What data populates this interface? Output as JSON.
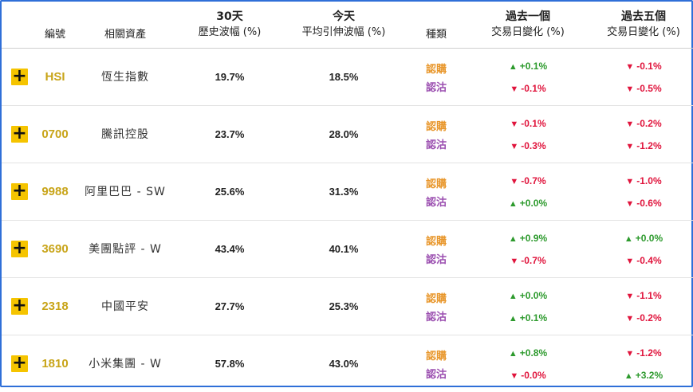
{
  "header": {
    "code": "編號",
    "asset": "相關資產",
    "hist_vol": [
      "30天",
      "歷史波幅 (%)"
    ],
    "today_vol": [
      "今天",
      "平均引伸波幅 (%)"
    ],
    "type": "種類",
    "chg1": [
      "過去一個",
      "交易日變化 (%)"
    ],
    "chg5": [
      "過去五個",
      "交易日變化 (%)"
    ]
  },
  "rows": [
    {
      "code": "HSI",
      "asset": "恆生指數",
      "hist": "19.7%",
      "today": "18.5%",
      "call": "認購",
      "put": "認沽",
      "c1": [
        {
          "dir": "up",
          "v": "+0.1%"
        },
        {
          "dir": "down",
          "v": "-0.1%"
        }
      ],
      "c5": [
        {
          "dir": "down",
          "v": "-0.1%"
        },
        {
          "dir": "down",
          "v": "-0.5%"
        }
      ]
    },
    {
      "code": "0700",
      "asset": "騰訊控股",
      "hist": "23.7%",
      "today": "28.0%",
      "call": "認購",
      "put": "認沽",
      "c1": [
        {
          "dir": "down",
          "v": "-0.1%"
        },
        {
          "dir": "down",
          "v": "-0.3%"
        }
      ],
      "c5": [
        {
          "dir": "down",
          "v": "-0.2%"
        },
        {
          "dir": "down",
          "v": "-1.2%"
        }
      ]
    },
    {
      "code": "9988",
      "asset": "阿里巴巴 - SW",
      "hist": "25.6%",
      "today": "31.3%",
      "call": "認購",
      "put": "認沽",
      "c1": [
        {
          "dir": "down",
          "v": "-0.7%"
        },
        {
          "dir": "up",
          "v": "+0.0%"
        }
      ],
      "c5": [
        {
          "dir": "down",
          "v": "-1.0%"
        },
        {
          "dir": "down",
          "v": "-0.6%"
        }
      ]
    },
    {
      "code": "3690",
      "asset": "美團點評 - W",
      "hist": "43.4%",
      "today": "40.1%",
      "call": "認購",
      "put": "認沽",
      "c1": [
        {
          "dir": "up",
          "v": "+0.9%"
        },
        {
          "dir": "down",
          "v": "-0.7%"
        }
      ],
      "c5": [
        {
          "dir": "up",
          "v": "+0.0%"
        },
        {
          "dir": "down",
          "v": "-0.4%"
        }
      ]
    },
    {
      "code": "2318",
      "asset": "中國平安",
      "hist": "27.7%",
      "today": "25.3%",
      "call": "認購",
      "put": "認沽",
      "c1": [
        {
          "dir": "up",
          "v": "+0.0%"
        },
        {
          "dir": "up",
          "v": "+0.1%"
        }
      ],
      "c5": [
        {
          "dir": "down",
          "v": "-1.1%"
        },
        {
          "dir": "down",
          "v": "-0.2%"
        }
      ]
    },
    {
      "code": "1810",
      "asset": "小米集團 - W",
      "hist": "57.8%",
      "today": "43.0%",
      "call": "認購",
      "put": "認沽",
      "c1": [
        {
          "dir": "up",
          "v": "+0.8%"
        },
        {
          "dir": "down",
          "v": "-0.0%"
        }
      ],
      "c5": [
        {
          "dir": "down",
          "v": "-1.2%"
        },
        {
          "dir": "up",
          "v": "+3.2%"
        }
      ]
    }
  ],
  "icons": {
    "expand": "plus-icon",
    "up": "triangle-up-icon",
    "down": "triangle-down-icon"
  },
  "colors": {
    "border": "#2f6fd8",
    "code": "#c8a418",
    "call": "#e8962a",
    "put": "#9b4fb0",
    "up": "#2d9a2d",
    "down": "#e0143c",
    "plus_bg": "#f5c400"
  }
}
